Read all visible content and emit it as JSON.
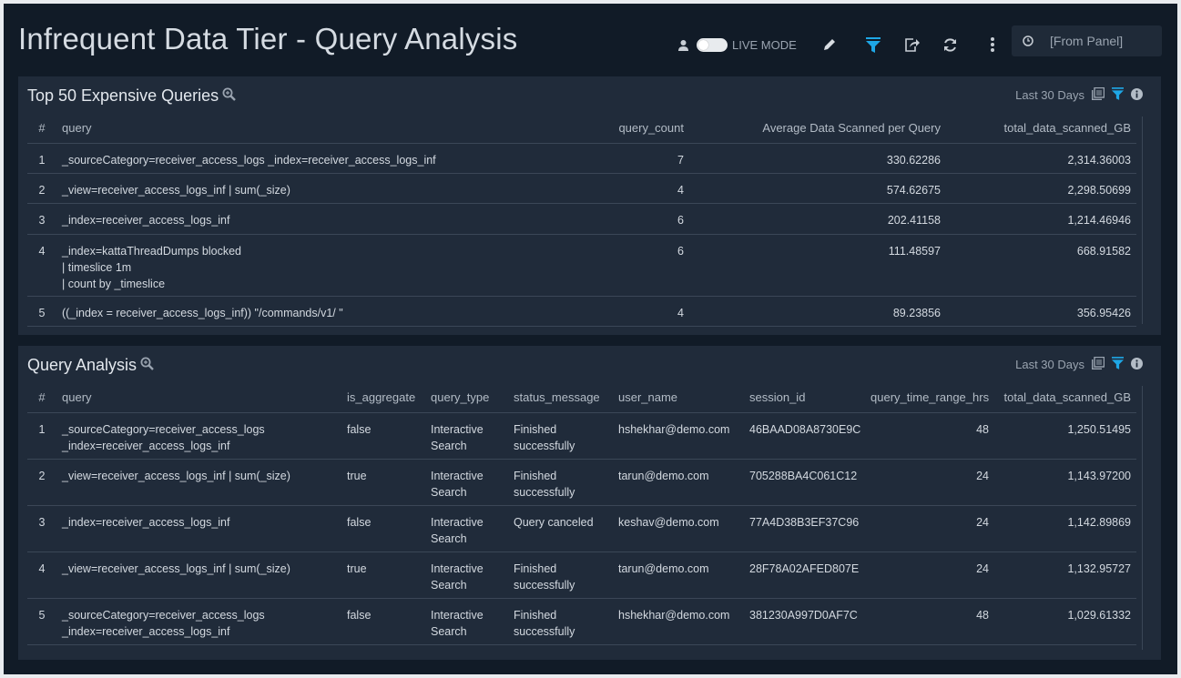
{
  "header": {
    "title": "Infrequent Data Tier - Query Analysis",
    "live_mode_label": "LIVE MODE",
    "time_range": "[From Panel]",
    "accent": "#1ea7e6"
  },
  "panels": [
    {
      "title": "Top 50 Expensive Queries",
      "time": "Last 30 Days",
      "columns": [
        "#",
        "query",
        "query_count",
        "Average Data Scanned per Query",
        "total_data_scanned_GB"
      ],
      "rows": [
        {
          "n": "1",
          "query": [
            "_sourceCategory=receiver_access_logs _index=receiver_access_logs_inf"
          ],
          "query_count": "7",
          "avg": "330.62286",
          "total": "2,314.36003"
        },
        {
          "n": "2",
          "query": [
            "_view=receiver_access_logs_inf | sum(_size)"
          ],
          "query_count": "4",
          "avg": "574.62675",
          "total": "2,298.50699"
        },
        {
          "n": "3",
          "query": [
            "_index=receiver_access_logs_inf"
          ],
          "query_count": "6",
          "avg": "202.41158",
          "total": "1,214.46946"
        },
        {
          "n": "4",
          "query": [
            "_index=kattaThreadDumps blocked",
            "| timeslice 1m",
            "| count by _timeslice"
          ],
          "query_count": "6",
          "avg": "111.48597",
          "total": "668.91582"
        },
        {
          "n": "5",
          "query": [
            "((_index = receiver_access_logs_inf))  \"/commands/v1/ \""
          ],
          "query_count": "4",
          "avg": "89.23856",
          "total": "356.95426"
        }
      ]
    },
    {
      "title": "Query Analysis",
      "time": "Last 30 Days",
      "columns": [
        "#",
        "query",
        "is_aggregate",
        "query_type",
        "status_message",
        "user_name",
        "session_id",
        "query_time_range_hrs",
        "total_data_scanned_GB"
      ],
      "rows": [
        {
          "n": "1",
          "query": [
            "_sourceCategory=receiver_access_logs",
            "_index=receiver_access_logs_inf"
          ],
          "is_aggregate": "false",
          "query_type": [
            "Interactive",
            "Search"
          ],
          "status": [
            "Finished",
            "successfully"
          ],
          "user": "hshekhar@demo.com",
          "session": "46BAAD08A8730E9C",
          "hrs": "48",
          "total": "1,250.51495"
        },
        {
          "n": "2",
          "query": [
            "_view=receiver_access_logs_inf | sum(_size)"
          ],
          "is_aggregate": "true",
          "query_type": [
            "Interactive",
            "Search"
          ],
          "status": [
            "Finished",
            "successfully"
          ],
          "user": "tarun@demo.com",
          "session": "705288BA4C061C12",
          "hrs": "24",
          "total": "1,143.97200"
        },
        {
          "n": "3",
          "query": [
            "_index=receiver_access_logs_inf"
          ],
          "is_aggregate": "false",
          "query_type": [
            "Interactive",
            "Search"
          ],
          "status": [
            "Query canceled"
          ],
          "user": "keshav@demo.com",
          "session": "77A4D38B3EF37C96",
          "hrs": "24",
          "total": "1,142.89869"
        },
        {
          "n": "4",
          "query": [
            "_view=receiver_access_logs_inf | sum(_size)"
          ],
          "is_aggregate": "true",
          "query_type": [
            "Interactive",
            "Search"
          ],
          "status": [
            "Finished",
            "successfully"
          ],
          "user": "tarun@demo.com",
          "session": "28F78A02AFED807E",
          "hrs": "24",
          "total": "1,132.95727"
        },
        {
          "n": "5",
          "query": [
            "_sourceCategory=receiver_access_logs",
            "_index=receiver_access_logs_inf"
          ],
          "is_aggregate": "false",
          "query_type": [
            "Interactive",
            "Search"
          ],
          "status": [
            "Finished",
            "successfully"
          ],
          "user": "hshekhar@demo.com",
          "session": "381230A997D0AF7C",
          "hrs": "48",
          "total": "1,029.61332"
        }
      ]
    }
  ]
}
